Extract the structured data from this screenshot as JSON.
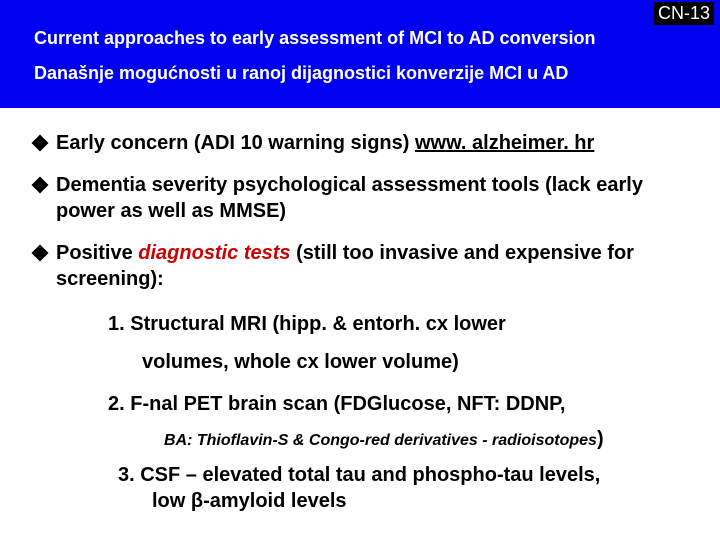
{
  "slideNumber": "CN-13",
  "header": {
    "line1": "Current approaches to early assessment of MCI to AD conversion",
    "line2": "Današnje mogućnosti u ranoj dijagnostici konverzije MCI u AD"
  },
  "bullets": [
    {
      "pre": "Early concern (ADI 10 warning signs) ",
      "link": "www. alzheimer. hr",
      "post": ""
    },
    {
      "text": "Dementia severity psychological assessment tools (lack early power as well as MMSE)"
    },
    {
      "pre": "Positive ",
      "emph": "diagnostic tests",
      "post": " (still too invasive and expensive for screening):"
    }
  ],
  "numbered": {
    "n1a": "1. Structural MRI (hipp. & entorh. cx  lower",
    "n1b": "volumes, whole cx lower volume)",
    "n2": "2. F-nal PET brain scan (FDGlucose, NFT: DDNP,",
    "n2sub_pre": "BA: Thioflavin-S & Congo-red derivatives - radioisotopes",
    "n2sub_paren": ")",
    "n3a": "3. CSF – elevated total tau and phospho-tau levels,",
    "n3b": "low β-amyloid levels"
  },
  "colors": {
    "headerBg": "#0000f0",
    "red": "#cc0000",
    "black": "#000000",
    "white": "#ffffff"
  }
}
